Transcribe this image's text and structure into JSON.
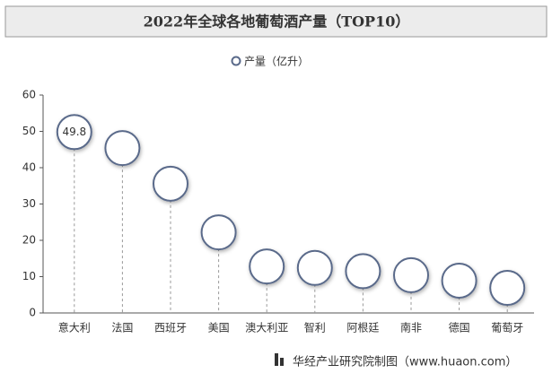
{
  "chart_data": {
    "type": "bubble-lollipop",
    "title": "2022年全球各地葡萄酒产量（TOP10）",
    "legend": "产量（亿升）",
    "footer": "华经产业研究院制图（www.huaon.com）",
    "categories": [
      "意大利",
      "法国",
      "西班牙",
      "美国",
      "澳大利亚",
      "智利",
      "阿根廷",
      "南非",
      "德国",
      "葡萄牙"
    ],
    "values": [
      49.8,
      45.4,
      35.6,
      22.2,
      12.8,
      12.4,
      11.5,
      10.4,
      8.9,
      6.9
    ],
    "color": "#5a6a8a",
    "ylim": [
      0,
      60
    ],
    "yticks": [
      0,
      10,
      20,
      30,
      40,
      50,
      60
    ]
  }
}
